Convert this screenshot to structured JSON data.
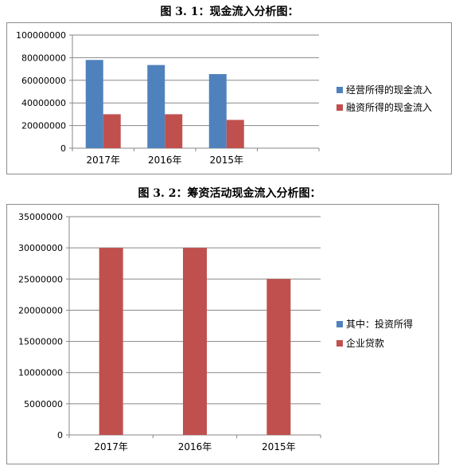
{
  "figure1": {
    "title": "图 3. 1：现金流入分析图："
  },
  "figure2": {
    "title": "图 3. 2：筹资活动现金流入分析图："
  },
  "chart_data": [
    {
      "type": "bar",
      "categories": [
        "2017年",
        "2016年",
        "2015年"
      ],
      "series": [
        {
          "name": "经营所得的现金流入",
          "values": [
            78000000,
            73500000,
            65500000
          ],
          "color": "#4F81BD"
        },
        {
          "name": "融资所得的现金流入",
          "values": [
            30000000,
            30000000,
            25000000
          ],
          "color": "#C0504D"
        }
      ],
      "ylim": [
        0,
        100000000
      ],
      "yticks": [
        "0",
        "20000000",
        "40000000",
        "60000000",
        "80000000",
        "100000000"
      ],
      "ytick_values": [
        0,
        20000000,
        40000000,
        60000000,
        80000000,
        100000000
      ],
      "grid": true,
      "legend": "right"
    },
    {
      "type": "bar",
      "categories": [
        "2017年",
        "2016年",
        "2015年"
      ],
      "series": [
        {
          "name": "其中：投资所得",
          "values": [
            0,
            0,
            0
          ],
          "color": "#4F81BD"
        },
        {
          "name": "企业贷款",
          "values": [
            30000000,
            30000000,
            25000000
          ],
          "color": "#C0504D"
        }
      ],
      "ylim": [
        0,
        35000000
      ],
      "yticks": [
        "0",
        "5000000",
        "10000000",
        "15000000",
        "20000000",
        "25000000",
        "30000000",
        "35000000"
      ],
      "ytick_values": [
        0,
        5000000,
        10000000,
        15000000,
        20000000,
        25000000,
        30000000,
        35000000
      ],
      "grid": true,
      "legend": "right"
    }
  ]
}
